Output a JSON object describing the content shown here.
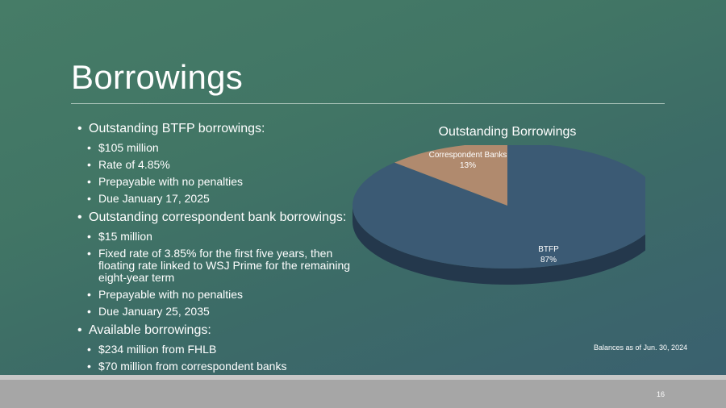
{
  "slide": {
    "title": "Borrowings",
    "page_number": "16",
    "footnote": "Balances as of Jun. 30, 2024"
  },
  "bullets": [
    {
      "level": 1,
      "text": "Outstanding BTFP borrowings:"
    },
    {
      "level": 2,
      "text": "$105 million"
    },
    {
      "level": 2,
      "text": "Rate of 4.85%"
    },
    {
      "level": 2,
      "text": "Prepayable with no penalties"
    },
    {
      "level": 2,
      "text": "Due January 17, 2025"
    },
    {
      "level": 1,
      "text": "Outstanding correspondent bank borrowings:"
    },
    {
      "level": 2,
      "text": "$15 million"
    },
    {
      "level": 2,
      "text": "Fixed rate of 3.85% for the first five years, then floating rate linked to WSJ Prime for the remaining eight-year term"
    },
    {
      "level": 2,
      "text": "Prepayable with no penalties"
    },
    {
      "level": 2,
      "text": "Due January 25, 2035"
    },
    {
      "level": 1,
      "text": "Available borrowings:"
    },
    {
      "level": 2,
      "text": "$234 million from FHLB"
    },
    {
      "level": 2,
      "text": "$70 million from correspondent banks"
    }
  ],
  "chart_data": {
    "type": "pie",
    "title": "Outstanding Borrowings",
    "three_d": true,
    "series": [
      {
        "name": "BTFP",
        "value": 87,
        "label": "87%",
        "color": "#3b5a74",
        "side_color": "#24384c"
      },
      {
        "name": "Correspondent Banks",
        "value": 13,
        "label": "13%",
        "color": "#b08a6e",
        "side_color": "#7e5f48"
      }
    ]
  },
  "colors": {
    "background_top": "#467c67",
    "background_bottom": "#3a5f70",
    "text": "#ffffff",
    "footer": "#a6a6a6"
  }
}
